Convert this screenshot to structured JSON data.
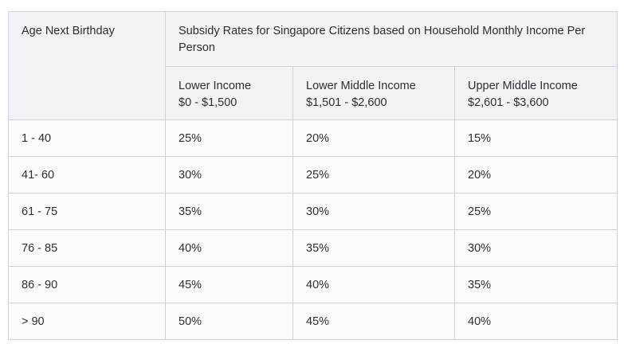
{
  "table": {
    "age_header": "Age Next Birthday",
    "group_header": "Subsidy Rates for Singapore Citizens based on Household Monthly Income Per Person",
    "income_columns": [
      {
        "label": "Lower Income",
        "range": "$0 - $1,500"
      },
      {
        "label": "Lower Middle Income",
        "range": "$1,501 - $2,600"
      },
      {
        "label": "Upper Middle Income",
        "range": "$2,601 - $3,600"
      }
    ],
    "rows": [
      {
        "age": "1 - 40",
        "values": [
          "25%",
          "20%",
          "15%"
        ]
      },
      {
        "age": "41- 60",
        "values": [
          "30%",
          "25%",
          "20%"
        ]
      },
      {
        "age": "61 - 75",
        "values": [
          "35%",
          "30%",
          "25%"
        ]
      },
      {
        "age": "76 - 85",
        "values": [
          "40%",
          "35%",
          "30%"
        ]
      },
      {
        "age": "86 - 90",
        "values": [
          "45%",
          "40%",
          "35%"
        ]
      },
      {
        "age": "> 90",
        "values": [
          "50%",
          "45%",
          "40%"
        ]
      }
    ]
  }
}
